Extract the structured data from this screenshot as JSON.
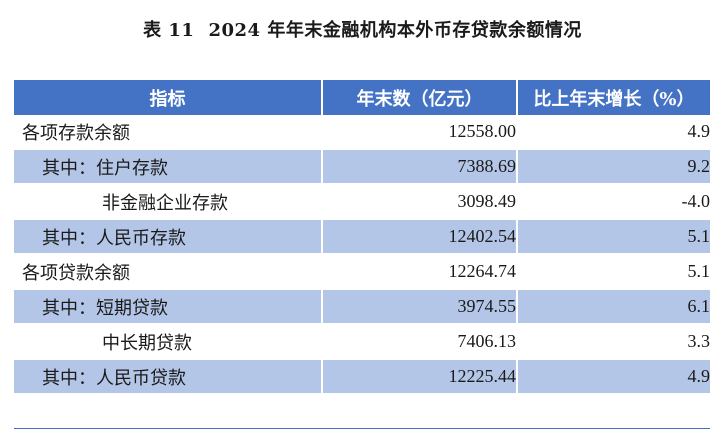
{
  "title": {
    "label": "表 11",
    "text": "2024 年年末金融机构本外币存贷款余额情况"
  },
  "table": {
    "headers": [
      "指标",
      "年末数（亿元）",
      "比上年末增长（%）"
    ],
    "rows": [
      {
        "label": "各项存款余额",
        "value": "12558.00",
        "growth": "4.9"
      },
      {
        "label": "其中：住户存款",
        "value": "7388.69",
        "growth": "9.2"
      },
      {
        "label": "非金融企业存款",
        "value": "3098.49",
        "growth": "-4.0"
      },
      {
        "label": "其中：人民币存款",
        "value": "12402.54",
        "growth": "5.1"
      },
      {
        "label": "各项贷款余额",
        "value": "12264.74",
        "growth": "5.1"
      },
      {
        "label": "其中：短期贷款",
        "value": "3974.55",
        "growth": "6.1"
      },
      {
        "label": "中长期贷款",
        "value": "7406.13",
        "growth": "3.3"
      },
      {
        "label": "其中：人民币贷款",
        "value": "12225.44",
        "growth": "4.9"
      }
    ]
  },
  "colors": {
    "header_bg": "#4472c4",
    "row_band": "#b4c6e7"
  }
}
